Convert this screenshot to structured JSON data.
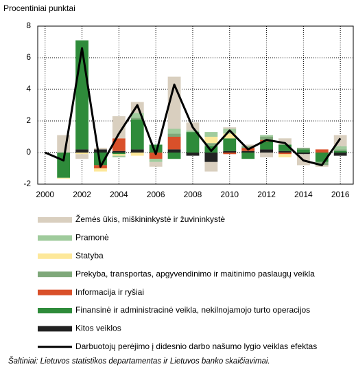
{
  "chart_data": {
    "type": "stacked_bar_line",
    "y_axis_label": "Procentiniai punktai",
    "source": "Šaltiniai: Lietuvos statistikos departamentas ir Lietuvos banko skaičiavimai.",
    "x": [
      2000,
      2001,
      2002,
      2003,
      2004,
      2005,
      2006,
      2007,
      2008,
      2009,
      2010,
      2011,
      2012,
      2013,
      2014,
      2015,
      2016
    ],
    "xlim": [
      1999.6,
      2016.7
    ],
    "xticks": [
      2000,
      2002,
      2004,
      2006,
      2008,
      2010,
      2012,
      2014,
      2016
    ],
    "ylim": [
      -2,
      8
    ],
    "yticks": [
      -2,
      0,
      2,
      4,
      6,
      8
    ],
    "grid": true,
    "series": [
      {
        "name": "Žemės ūkis, miškininkystė ir žuvininkystė",
        "color": "#d9cfbf",
        "kind": "bar",
        "values": [
          null,
          1.1,
          -0.3,
          0.1,
          1.4,
          0.7,
          -0.3,
          3.3,
          0.5,
          -0.6,
          0.1,
          0.1,
          -0.3,
          0.4,
          -0.7,
          -0.1,
          0.7
        ]
      },
      {
        "name": "Pramonė",
        "color": "#9fcb9c",
        "kind": "bar",
        "values": [
          null,
          0,
          0,
          0,
          -0.1,
          0.3,
          -0.2,
          0.3,
          0.1,
          0.3,
          0.3,
          0,
          0.1,
          0,
          0,
          0,
          0.2
        ]
      },
      {
        "name": "Statyba",
        "color": "#fde89a",
        "kind": "bar",
        "values": [
          null,
          -0.05,
          -0.1,
          -0.2,
          -0.1,
          -0.2,
          0,
          0,
          0,
          0.4,
          0.3,
          0,
          0,
          -0.2,
          0,
          0,
          0
        ]
      },
      {
        "name": "Prekyba, transportas, apgyvendinimo ir maitinimo paslaugų veikla",
        "color": "#7fa87a",
        "kind": "bar",
        "values": [
          null,
          0,
          0,
          0,
          0,
          0.1,
          0,
          0.2,
          0,
          0.2,
          0,
          0.1,
          0.2,
          0,
          0.1,
          -0.2,
          0.1
        ]
      },
      {
        "name": "Informacija ir ryšiai",
        "color": "#d9502a",
        "kind": "bar",
        "values": [
          null,
          0,
          0,
          -0.2,
          0.8,
          0,
          -0.4,
          0.8,
          0,
          0,
          -0.1,
          0.2,
          0.1,
          -0.1,
          0,
          0.2,
          0
        ]
      },
      {
        "name": "Finansinė ir administracinė veikla, nekilnojamojo turto operacijos",
        "color": "#2e8b3a",
        "kind": "bar",
        "values": [
          null,
          -1.6,
          6.9,
          -0.8,
          -0.1,
          1.9,
          0.5,
          -0.4,
          1.3,
          0.4,
          0.8,
          -0.4,
          0.5,
          0.4,
          0.2,
          -0.6,
          0.1
        ]
      },
      {
        "name": "Kitos veiklos",
        "color": "#222222",
        "kind": "bar",
        "values": [
          null,
          0,
          0.2,
          0.2,
          0.1,
          0.2,
          0,
          0.2,
          -0.2,
          -0.6,
          0.1,
          0.1,
          0.2,
          0.1,
          -0.1,
          0,
          -0.2
        ]
      },
      {
        "name": "Darbuotojų perėjimo į didesnio darbo našumo lygio veiklas efektas",
        "color": "#000000",
        "kind": "line",
        "values": [
          0,
          -0.5,
          6.6,
          -0.9,
          1.2,
          3.0,
          -0.1,
          4.3,
          1.6,
          0.1,
          1.4,
          0.2,
          0.8,
          0.6,
          -0.5,
          -0.8,
          0.9
        ]
      }
    ]
  }
}
